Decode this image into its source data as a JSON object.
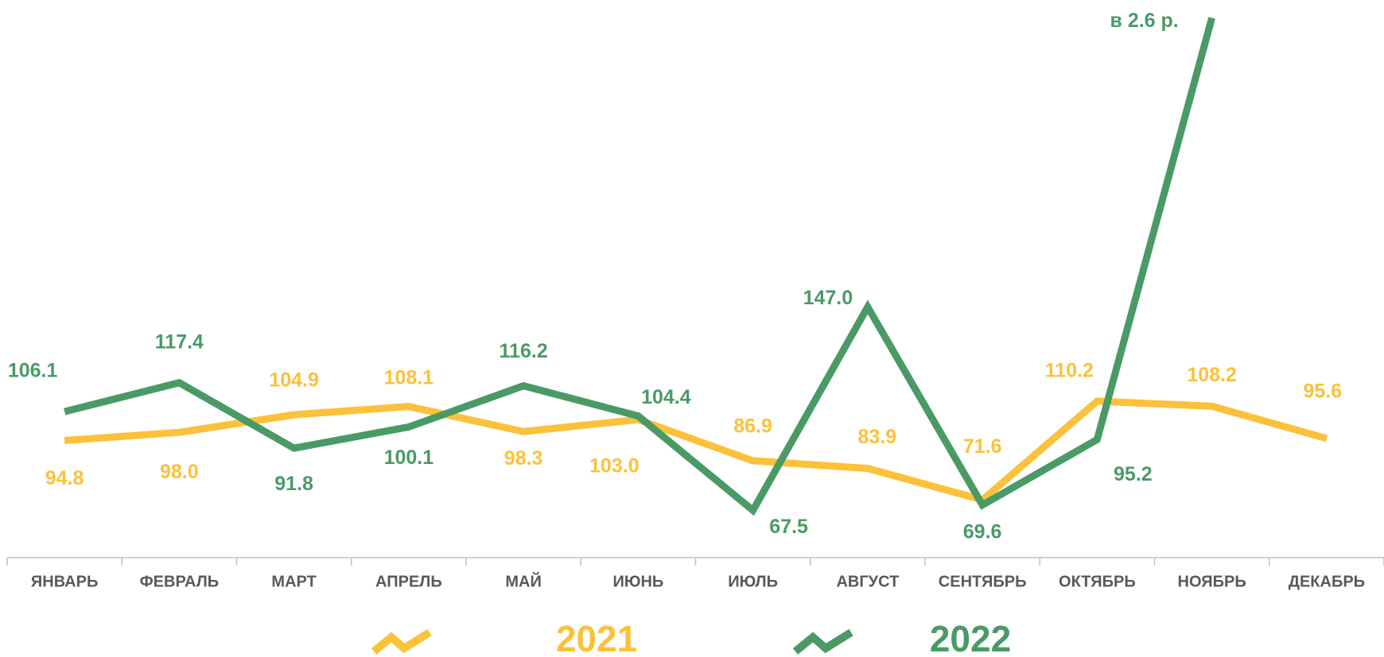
{
  "chart_data": {
    "type": "line",
    "categories": [
      "ЯНВАРЬ",
      "ФЕВРАЛЬ",
      "МАРТ",
      "АПРЕЛЬ",
      "МАЙ",
      "ИЮНЬ",
      "ИЮЛЬ",
      "АВГУСТ",
      "СЕНТЯБРЬ",
      "ОКТЯБРЬ",
      "НОЯБРЬ",
      "ДЕКАБРЬ"
    ],
    "series": [
      {
        "name": "2021",
        "color": "#FBC13A",
        "values": [
          94.8,
          98.0,
          104.9,
          108.1,
          98.3,
          103.0,
          86.9,
          83.9,
          71.6,
          110.2,
          108.2,
          95.6
        ],
        "value_labels": [
          "94.8",
          "98.0",
          "104.9",
          "108.1",
          "98.3",
          "103.0",
          "86.9",
          "83.9",
          "71.6",
          "110.2",
          "108.2",
          "95.6"
        ]
      },
      {
        "name": "2022",
        "color": "#4A9A66",
        "values": [
          106.1,
          117.4,
          91.8,
          100.1,
          116.2,
          104.4,
          67.5,
          147.0,
          69.6,
          95.2,
          260,
          null
        ],
        "value_labels": [
          "106.1",
          "117.4",
          "91.8",
          "100.1",
          "116.2",
          "104.4",
          "67.5",
          "147.0",
          "69.6",
          "95.2",
          "в 2.6 р.",
          null
        ]
      }
    ],
    "ylim": [
      49,
      267
    ],
    "legend": "bottom"
  }
}
